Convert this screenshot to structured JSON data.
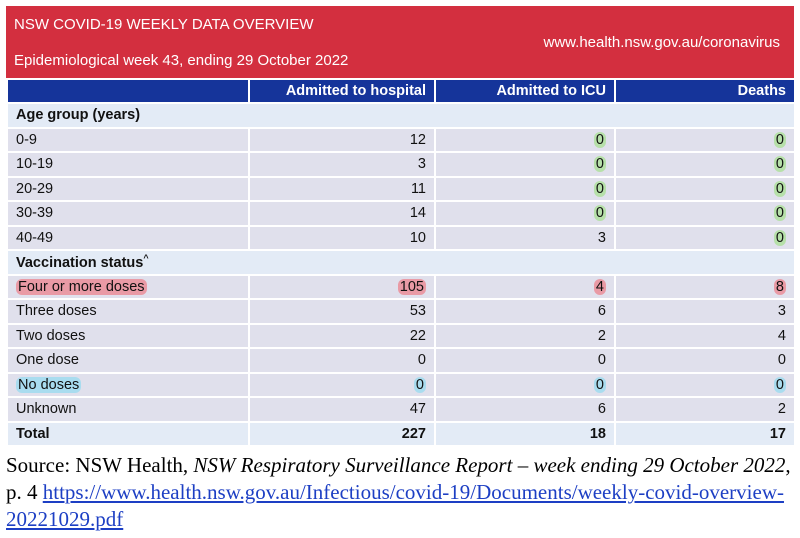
{
  "banner": {
    "title": "NSW COVID-19 WEEKLY DATA OVERVIEW",
    "subtitle": "Epidemiological week 43, ending 29 October 2022",
    "url": "www.health.nsw.gov.au/coronavirus"
  },
  "table": {
    "headers": [
      "",
      "Admitted to hospital",
      "Admitted to ICU",
      "Deaths"
    ],
    "age_section_label": "Age group (years)",
    "age_rows": [
      {
        "label": "0-9",
        "hospital": "12",
        "icu": "0",
        "deaths": "0"
      },
      {
        "label": "10-19",
        "hospital": "3",
        "icu": "0",
        "deaths": "0"
      },
      {
        "label": "20-29",
        "hospital": "11",
        "icu": "0",
        "deaths": "0"
      },
      {
        "label": "30-39",
        "hospital": "14",
        "icu": "0",
        "deaths": "0"
      },
      {
        "label": "40-49",
        "hospital": "10",
        "icu": "3",
        "deaths": "0"
      }
    ],
    "vacc_section_label": "Vaccination status",
    "vacc_section_marker": "^",
    "vacc_rows": [
      {
        "label": "Four or more doses",
        "hospital": "105",
        "icu": "4",
        "deaths": "8"
      },
      {
        "label": "Three doses",
        "hospital": "53",
        "icu": "6",
        "deaths": "3"
      },
      {
        "label": "Two doses",
        "hospital": "22",
        "icu": "2",
        "deaths": "4"
      },
      {
        "label": "One dose",
        "hospital": "0",
        "icu": "0",
        "deaths": "0"
      },
      {
        "label": "No doses",
        "hospital": "0",
        "icu": "0",
        "deaths": "0"
      },
      {
        "label": "Unknown",
        "hospital": "47",
        "icu": "6",
        "deaths": "2"
      }
    ],
    "total": {
      "label": "Total",
      "hospital": "227",
      "icu": "18",
      "deaths": "17"
    }
  },
  "highlight_colors": {
    "green": "#b6e0a9",
    "red": "#e99aa5",
    "blue": "#a9dcef"
  },
  "source": {
    "prefix": "Source: NSW Health, ",
    "report_title": "NSW Respiratory Surveillance Report – week ending 29 October 2022",
    "page": ", p. 4 ",
    "link_text": "https://www.health.nsw.gov.au/Infectious/covid-19/Documents/weekly-covid-overview-20221029.pdf"
  }
}
